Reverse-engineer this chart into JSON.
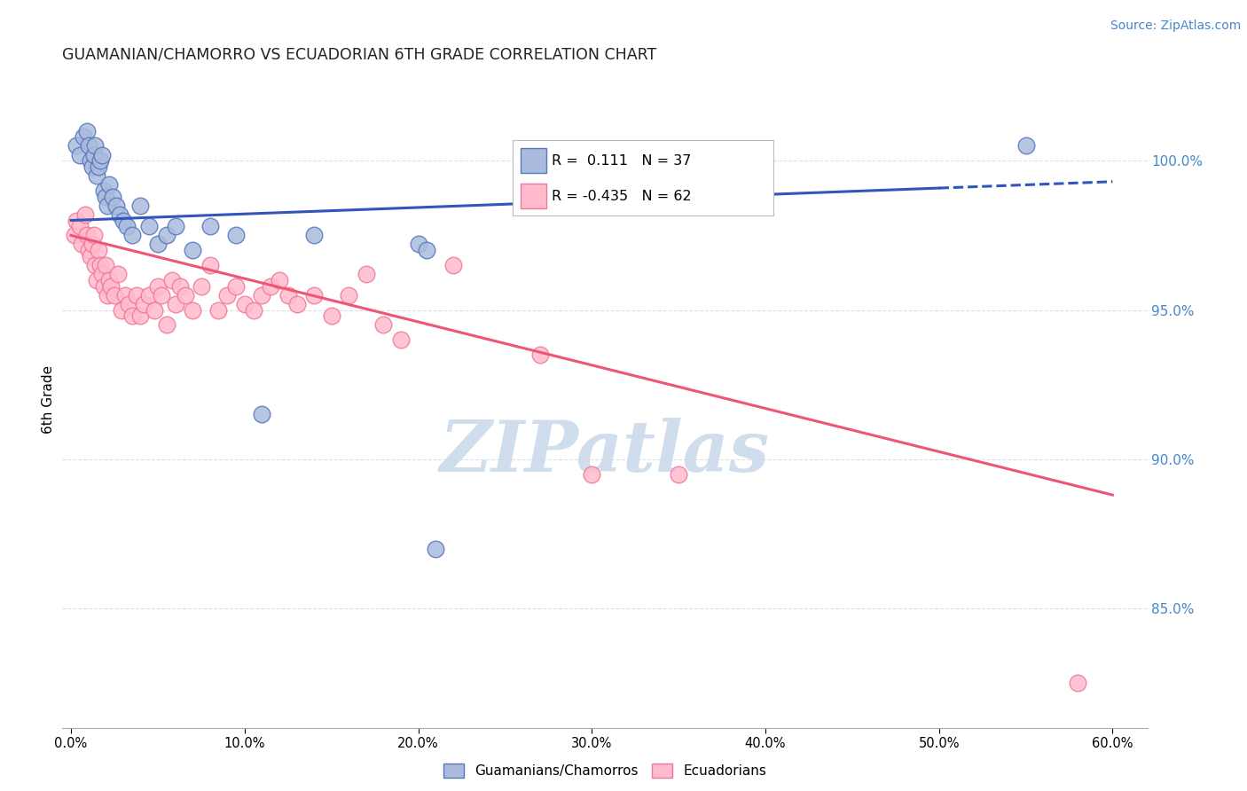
{
  "title": "GUAMANIAN/CHAMORRO VS ECUADORIAN 6TH GRADE CORRELATION CHART",
  "source": "Source: ZipAtlas.com",
  "xlabel_ticks": [
    0.0,
    10.0,
    20.0,
    30.0,
    40.0,
    50.0,
    60.0
  ],
  "xlim": [
    -0.5,
    62.0
  ],
  "ylim": [
    81.0,
    103.0
  ],
  "ylabel": "6th Grade",
  "blue_R": 0.111,
  "blue_N": 37,
  "pink_R": -0.435,
  "pink_N": 62,
  "blue_fill_color": "#AABBDD",
  "blue_edge_color": "#5577BB",
  "pink_fill_color": "#FFBBCC",
  "pink_edge_color": "#EE7799",
  "blue_line_color": "#3355BB",
  "pink_line_color": "#EE5577",
  "watermark_color": "#C8D8EA",
  "grid_color": "#DDDDEE",
  "legend_border_color": "#BBBBBB",
  "title_color": "#222222",
  "source_color": "#4488CC",
  "right_tick_color": "#4488CC",
  "watermark": "ZIPatlas",
  "legend_blue_label": "Guamanians/Chamorros",
  "legend_pink_label": "Ecuadorians",
  "blue_line_x0": 0.0,
  "blue_line_x1": 60.0,
  "blue_line_y0": 98.0,
  "blue_line_y1": 99.3,
  "blue_line_dash_start": 50.0,
  "pink_line_x0": 0.0,
  "pink_line_x1": 60.0,
  "pink_line_y0": 97.5,
  "pink_line_y1": 88.8,
  "blue_scatter_x": [
    0.3,
    0.5,
    0.7,
    0.9,
    1.0,
    1.1,
    1.2,
    1.3,
    1.4,
    1.5,
    1.6,
    1.7,
    1.8,
    1.9,
    2.0,
    2.1,
    2.2,
    2.4,
    2.6,
    2.8,
    3.0,
    3.2,
    3.5,
    4.0,
    4.5,
    5.0,
    5.5,
    6.0,
    7.0,
    8.0,
    9.5,
    11.0,
    14.0,
    20.0,
    20.5,
    21.0,
    55.0
  ],
  "blue_scatter_y": [
    100.5,
    100.2,
    100.8,
    101.0,
    100.5,
    100.0,
    99.8,
    100.2,
    100.5,
    99.5,
    99.8,
    100.0,
    100.2,
    99.0,
    98.8,
    98.5,
    99.2,
    98.8,
    98.5,
    98.2,
    98.0,
    97.8,
    97.5,
    98.5,
    97.8,
    97.2,
    97.5,
    97.8,
    97.0,
    97.8,
    97.5,
    91.5,
    97.5,
    97.2,
    97.0,
    87.0,
    100.5
  ],
  "pink_scatter_x": [
    0.2,
    0.3,
    0.5,
    0.6,
    0.8,
    0.9,
    1.0,
    1.1,
    1.2,
    1.3,
    1.4,
    1.5,
    1.6,
    1.7,
    1.8,
    1.9,
    2.0,
    2.1,
    2.2,
    2.3,
    2.5,
    2.7,
    2.9,
    3.1,
    3.3,
    3.5,
    3.8,
    4.0,
    4.2,
    4.5,
    4.8,
    5.0,
    5.2,
    5.5,
    5.8,
    6.0,
    6.3,
    6.6,
    7.0,
    7.5,
    8.0,
    8.5,
    9.0,
    9.5,
    10.0,
    10.5,
    11.0,
    11.5,
    12.0,
    12.5,
    13.0,
    14.0,
    15.0,
    16.0,
    17.0,
    18.0,
    19.0,
    22.0,
    27.0,
    30.0,
    35.0,
    58.0
  ],
  "pink_scatter_y": [
    97.5,
    98.0,
    97.8,
    97.2,
    98.2,
    97.5,
    97.0,
    96.8,
    97.2,
    97.5,
    96.5,
    96.0,
    97.0,
    96.5,
    96.2,
    95.8,
    96.5,
    95.5,
    96.0,
    95.8,
    95.5,
    96.2,
    95.0,
    95.5,
    95.2,
    94.8,
    95.5,
    94.8,
    95.2,
    95.5,
    95.0,
    95.8,
    95.5,
    94.5,
    96.0,
    95.2,
    95.8,
    95.5,
    95.0,
    95.8,
    96.5,
    95.0,
    95.5,
    95.8,
    95.2,
    95.0,
    95.5,
    95.8,
    96.0,
    95.5,
    95.2,
    95.5,
    94.8,
    95.5,
    96.2,
    94.5,
    94.0,
    96.5,
    93.5,
    89.5,
    89.5,
    82.5
  ]
}
